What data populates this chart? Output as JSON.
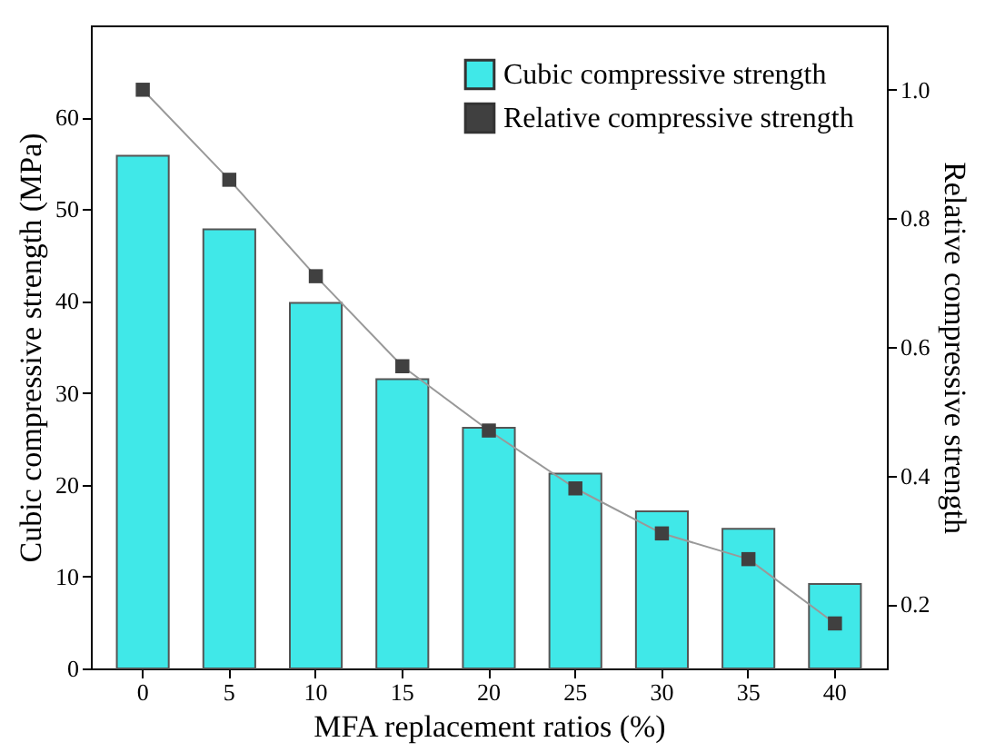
{
  "chart_data": {
    "type": "bar",
    "xlabel": "MFA replacement ratios (%)",
    "ylabel": "Cubic compressive strength (MPa)",
    "y2label": "Relative compressive strength",
    "categories": [
      "0",
      "5",
      "10",
      "15",
      "20",
      "25",
      "30",
      "35",
      "40"
    ],
    "series": [
      {
        "name": "Cubic compressive strength",
        "color": "#40e8e8",
        "values": [
          55.8,
          47.8,
          39.8,
          31.5,
          26.2,
          21.2,
          17.1,
          15.2,
          9.2
        ]
      },
      {
        "name": "Relative compressive strength",
        "type": "line",
        "axis": "y2",
        "color": "#404040",
        "marker": "square",
        "line_style": "solid",
        "values": [
          1.0,
          0.86,
          0.71,
          0.57,
          0.47,
          0.38,
          0.31,
          0.27,
          0.17
        ]
      }
    ],
    "ylim": [
      0,
      70
    ],
    "yticks": [
      0,
      10,
      20,
      30,
      40,
      50,
      60
    ],
    "y2lim": [
      0.1,
      1.1
    ],
    "y2ticks": [
      0.2,
      0.4,
      0.6,
      0.8,
      {
        "value": 1,
        "label": "1.0"
      }
    ],
    "grid": false,
    "legend": "top right"
  }
}
